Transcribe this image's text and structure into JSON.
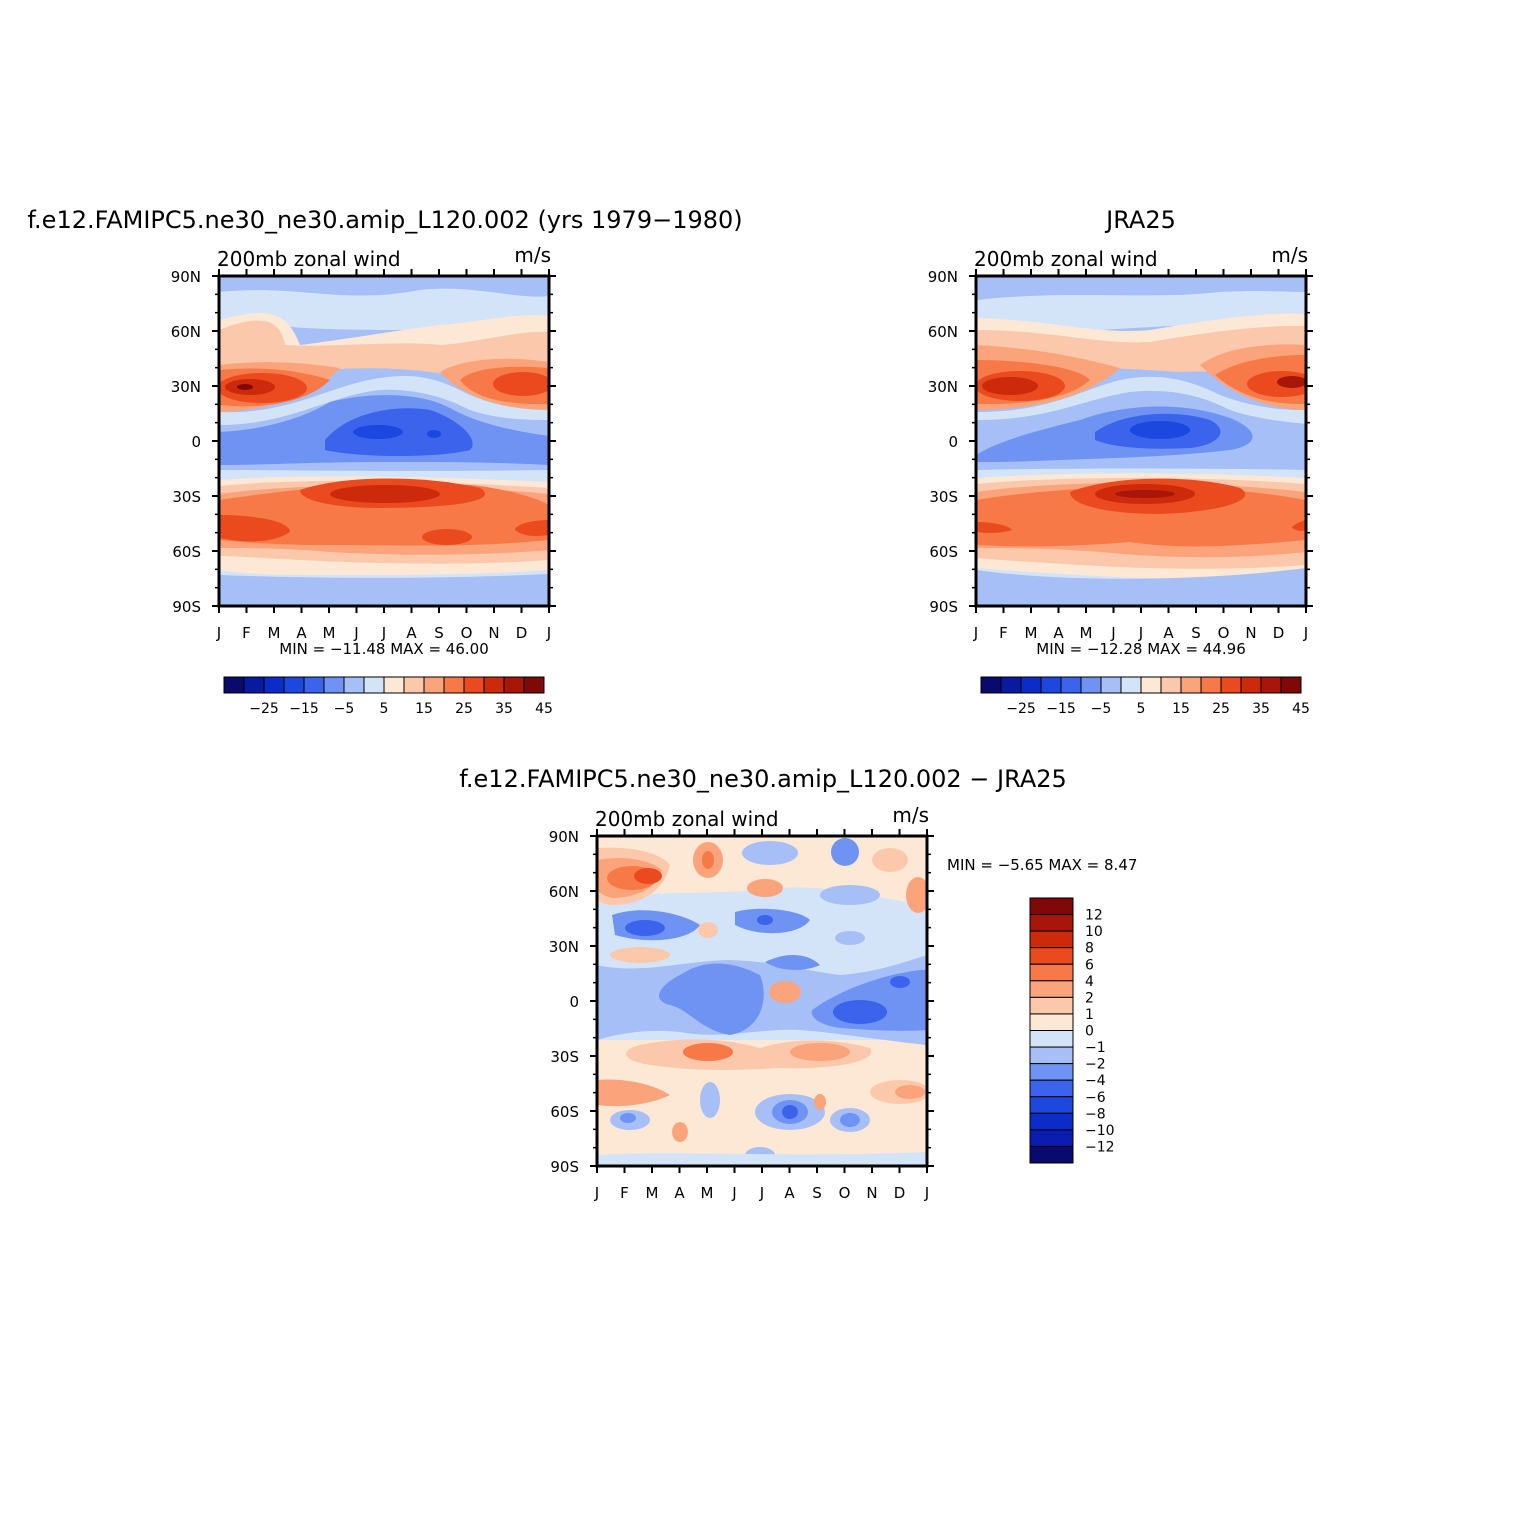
{
  "palette": [
    "#0a0a6e",
    "#0a1aa0",
    "#0b2cc8",
    "#1c48e0",
    "#3b63ec",
    "#6e93f2",
    "#a6bff6",
    "#d4e4f8",
    "#fde8d6",
    "#fcc8ac",
    "#fba47c",
    "#f77948",
    "#ea4a1e",
    "#cc2a0a",
    "#a8160a",
    "#7f0808"
  ],
  "diff_palette": [
    "#0a0a6e",
    "#0b1cb0",
    "#0b2cc8",
    "#1c48e0",
    "#3b63ec",
    "#6e93f2",
    "#a6bff6",
    "#d4e4f8",
    "#fde8d6",
    "#fcc8ac",
    "#fba47c",
    "#f77948",
    "#ea4a1e",
    "#cc2a0a",
    "#a8160a",
    "#7f0808"
  ],
  "common": {
    "subtitle": "200mb  zonal  wind",
    "units": "m/s",
    "months": [
      "J",
      "F",
      "M",
      "A",
      "M",
      "J",
      "J",
      "A",
      "S",
      "O",
      "N",
      "D",
      "J"
    ],
    "lat_labels": [
      "90N",
      "60N",
      "30N",
      "0",
      "30S",
      "60S",
      "90S"
    ]
  },
  "panels": {
    "model": {
      "title": "f.e12.FAMIPC5.ne30_ne30.amip_L120.002 (yrs 1979−1980)",
      "minmax": "MIN  =  −11.48  MAX  =    46.00"
    },
    "obs": {
      "title": "JRA25",
      "minmax": "MIN  =  −12.28  MAX  =    44.96"
    },
    "diff": {
      "title": "f.e12.FAMIPC5.ne30_ne30.amip_L120.002  −  JRA25",
      "minmax": "MIN  =    −5.65  MAX  =    8.47"
    }
  },
  "colorbar_h_labels": [
    "−25",
    "−15",
    "−5",
    "5",
    "15",
    "25",
    "35",
    "45"
  ],
  "colorbar_v_labels": [
    "12",
    "10",
    "8",
    "6",
    "4",
    "2",
    "1",
    "0",
    "−1",
    "−2",
    "−4",
    "−6",
    "−8",
    "−10",
    "−12"
  ],
  "chart_data": [
    {
      "type": "heatmap",
      "title": "f.e12.FAMIPC5.ne30_ne30.amip_L120.002 (yrs 1979−1980)",
      "subtitle": "200mb  zonal  wind",
      "units": "m/s",
      "x_categories": [
        "J",
        "F",
        "M",
        "A",
        "M",
        "J",
        "J",
        "A",
        "S",
        "O",
        "N",
        "D",
        "J"
      ],
      "y_ticks": [
        "90N",
        "60N",
        "30N",
        "0",
        "30S",
        "60S",
        "90S"
      ],
      "min": -11.48,
      "max": 46.0,
      "contour_levels": [
        -30,
        -25,
        -20,
        -15,
        -10,
        -5,
        0,
        5,
        10,
        15,
        20,
        25,
        30,
        35,
        40,
        45,
        50
      ]
    },
    {
      "type": "heatmap",
      "title": "JRA25",
      "subtitle": "200mb  zonal  wind",
      "units": "m/s",
      "x_categories": [
        "J",
        "F",
        "M",
        "A",
        "M",
        "J",
        "J",
        "A",
        "S",
        "O",
        "N",
        "D",
        "J"
      ],
      "y_ticks": [
        "90N",
        "60N",
        "30N",
        "0",
        "30S",
        "60S",
        "90S"
      ],
      "min": -12.28,
      "max": 44.96,
      "contour_levels": [
        -30,
        -25,
        -20,
        -15,
        -10,
        -5,
        0,
        5,
        10,
        15,
        20,
        25,
        30,
        35,
        40,
        45,
        50
      ]
    },
    {
      "type": "heatmap",
      "title": "f.e12.FAMIPC5.ne30_ne30.amip_L120.002  −  JRA25",
      "subtitle": "200mb  zonal  wind",
      "units": "m/s",
      "x_categories": [
        "J",
        "F",
        "M",
        "A",
        "M",
        "J",
        "J",
        "A",
        "S",
        "O",
        "N",
        "D",
        "J"
      ],
      "y_ticks": [
        "90N",
        "60N",
        "30N",
        "0",
        "30S",
        "60S",
        "90S"
      ],
      "min": -5.65,
      "max": 8.47,
      "contour_levels": [
        -12,
        -10,
        -8,
        -6,
        -4,
        -2,
        -1,
        0,
        1,
        2,
        4,
        6,
        8,
        10,
        12
      ]
    }
  ]
}
